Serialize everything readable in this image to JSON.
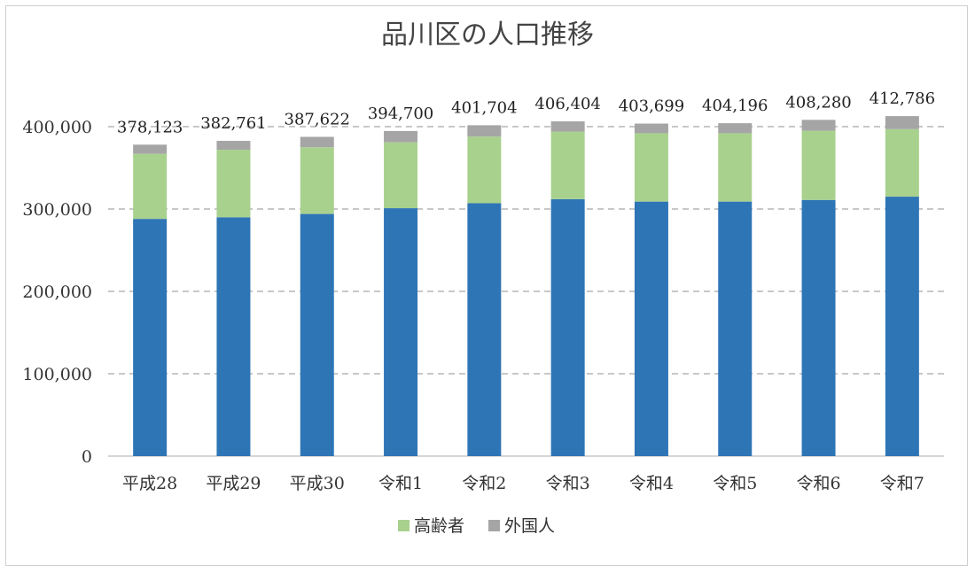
{
  "chart_data": {
    "type": "bar",
    "stacked": true,
    "title": "品川区の人口推移",
    "categories": [
      "平成28",
      "平成29",
      "平成30",
      "令和1",
      "令和2",
      "令和3",
      "令和4",
      "令和5",
      "令和6",
      "令和7"
    ],
    "series": [
      {
        "values": [
          288000,
          290000,
          294000,
          301000,
          307000,
          312000,
          309000,
          309000,
          311000,
          315000
        ],
        "color": "#2e75b6"
      },
      {
        "name": "高齢者",
        "values": [
          79000,
          82000,
          81000,
          80000,
          81000,
          82000,
          83000,
          83000,
          84000,
          82000
        ],
        "color": "#a9d18e"
      },
      {
        "name": "外国人",
        "values": [
          11123,
          10761,
          12622,
          13700,
          13704,
          12404,
          11699,
          12196,
          13280,
          15786
        ],
        "color": "#a5a5a5"
      }
    ],
    "totals": [
      378123,
      382761,
      387622,
      394700,
      401704,
      406404,
      403699,
      404196,
      408280,
      412786
    ],
    "total_labels": [
      "378,123",
      "382,761",
      "387,622",
      "394,700",
      "401,704",
      "406,404",
      "403,699",
      "404,196",
      "408,280",
      "412,786"
    ],
    "y_ticks": [
      0,
      100000,
      200000,
      300000,
      400000
    ],
    "y_tick_labels": [
      "0",
      "100,000",
      "200,000",
      "300,000",
      "400,000"
    ],
    "ylim": [
      0,
      400000
    ],
    "grid": true,
    "legend_position": "bottom",
    "xlabel": "",
    "ylabel": ""
  }
}
